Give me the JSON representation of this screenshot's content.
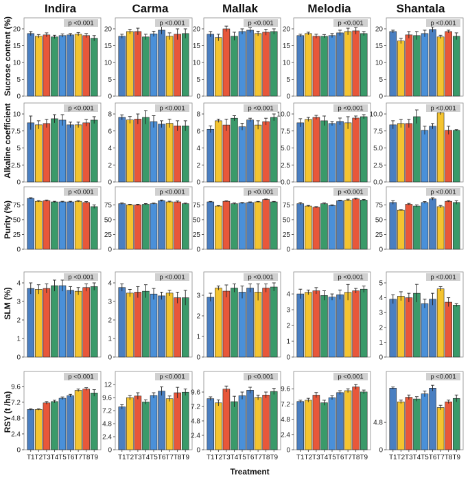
{
  "figure": {
    "cultivars": [
      "Indira",
      "Carma",
      "Mallak",
      "Melodia",
      "Shantala"
    ],
    "x_title": "Treatment",
    "treatments": [
      "T1",
      "T2",
      "T3",
      "T4",
      "T5",
      "T6",
      "T7",
      "T8",
      "T9"
    ],
    "p_label_prefix": "p",
    "p_label_suffix": "<0.001",
    "colors": [
      "#4a7fc1",
      "#f4c430",
      "#e8573a",
      "#3a9a6a",
      "#4a90d9",
      "#4a7fc1",
      "#f4c430",
      "#e8573a",
      "#3a9a6a"
    ]
  },
  "chart_data": [
    {
      "type": "bar",
      "row": 0,
      "col": 0,
      "cultivar": "Indira",
      "ylabel": "Sucrose content (%)",
      "ylim": [
        0,
        20
      ],
      "yticks": [
        "0",
        "5",
        "10",
        "15",
        "20"
      ],
      "p_label": "p <0.001",
      "values": [
        18.6,
        17.8,
        18.2,
        17.6,
        18.0,
        18.2,
        18.4,
        18.0,
        17.2
      ],
      "errors": [
        0.6,
        0.5,
        0.6,
        0.5,
        0.5,
        0.4,
        0.5,
        0.6,
        0.8
      ]
    },
    {
      "type": "bar",
      "row": 0,
      "col": 1,
      "cultivar": "Carma",
      "ylabel": "Sucrose content (%)",
      "ylim": [
        0,
        20
      ],
      "yticks": [
        "0",
        "5",
        "10",
        "15",
        "20"
      ],
      "p_label": "p <0.001",
      "values": [
        17.8,
        19.2,
        19.2,
        17.6,
        18.5,
        19.6,
        17.8,
        18.4,
        18.6
      ],
      "errors": [
        0.6,
        0.7,
        1.0,
        0.8,
        0.8,
        1.2,
        1.0,
        1.6,
        1.4
      ]
    },
    {
      "type": "bar",
      "row": 0,
      "col": 2,
      "cultivar": "Mallak",
      "ylabel": "Sucrose content (%)",
      "ylim": [
        0,
        20
      ],
      "yticks": [
        "0",
        "5",
        "10",
        "15",
        "20"
      ],
      "p_label": "p <0.001",
      "values": [
        18.4,
        17.4,
        20.0,
        17.8,
        19.2,
        19.6,
        18.6,
        19.0,
        19.2
      ],
      "errors": [
        0.8,
        1.0,
        0.8,
        1.2,
        0.8,
        0.7,
        0.7,
        0.9,
        0.8
      ]
    },
    {
      "type": "bar",
      "row": 0,
      "col": 3,
      "cultivar": "Melodia",
      "ylabel": "Sucrose content (%)",
      "ylim": [
        0,
        20
      ],
      "yticks": [
        "0",
        "5",
        "10",
        "15",
        "20"
      ],
      "p_label": "p <0.001",
      "values": [
        18.0,
        18.6,
        17.8,
        17.8,
        18.0,
        18.8,
        19.2,
        19.4,
        18.6
      ],
      "errors": [
        0.4,
        0.4,
        0.6,
        0.5,
        0.6,
        0.8,
        1.0,
        1.0,
        0.6
      ]
    },
    {
      "type": "bar",
      "row": 0,
      "col": 4,
      "cultivar": "Shantala",
      "ylabel": "Sucrose content (%)",
      "ylim": [
        0,
        20
      ],
      "yticks": [
        "0",
        "5",
        "10",
        "15",
        "20"
      ],
      "p_label": "p <0.001",
      "values": [
        19.2,
        16.4,
        18.2,
        18.0,
        18.6,
        19.8,
        17.6,
        19.2,
        17.8
      ],
      "errors": [
        0.4,
        0.8,
        1.0,
        1.2,
        1.0,
        0.8,
        0.5,
        0.4,
        1.0
      ]
    },
    {
      "type": "bar",
      "row": 1,
      "col": 0,
      "cultivar": "Indira",
      "ylabel": "Alkaline coefficient",
      "ylim": [
        0,
        10
      ],
      "yticks": [
        "0",
        "2.5",
        "5",
        "7.5",
        "10"
      ],
      "p_label": "p <0.001",
      "values": [
        8.7,
        8.4,
        8.6,
        9.3,
        9.1,
        8.4,
        8.4,
        8.7,
        9.1
      ],
      "errors": [
        1.0,
        0.6,
        0.6,
        0.6,
        0.8,
        0.4,
        0.4,
        0.5,
        0.5
      ]
    },
    {
      "type": "bar",
      "row": 1,
      "col": 1,
      "cultivar": "Carma",
      "ylabel": "Alkaline coefficient",
      "ylim": [
        0,
        8
      ],
      "yticks": [
        "0",
        "2",
        "4",
        "6",
        "8"
      ],
      "p_label": "p <0.001",
      "values": [
        7.6,
        7.3,
        7.4,
        7.6,
        7.1,
        6.8,
        6.9,
        6.6,
        6.6
      ],
      "errors": [
        0.3,
        0.4,
        0.6,
        0.8,
        0.7,
        0.4,
        0.5,
        0.6,
        0.6
      ]
    },
    {
      "type": "bar",
      "row": 1,
      "col": 2,
      "cultivar": "Mallak",
      "ylabel": "Alkaline coefficient",
      "ylim": [
        0,
        8
      ],
      "yticks": [
        "0",
        "2",
        "4",
        "6",
        "8"
      ],
      "p_label": "p <0.001",
      "values": [
        6.2,
        7.2,
        6.7,
        7.5,
        6.5,
        7.3,
        6.7,
        7.1,
        7.6
      ],
      "errors": [
        0.4,
        0.2,
        0.7,
        0.3,
        0.4,
        0.2,
        0.5,
        0.4,
        0.4
      ]
    },
    {
      "type": "bar",
      "row": 1,
      "col": 3,
      "cultivar": "Melodia",
      "ylabel": "Alkaline coefficient",
      "ylim": [
        0,
        10
      ],
      "yticks": [
        "0.0",
        "2.5",
        "5.0",
        "7.5",
        "10.0"
      ],
      "p_label": "p <0.001",
      "values": [
        8.7,
        9.2,
        9.5,
        9.0,
        8.6,
        8.9,
        8.7,
        9.4,
        9.6
      ],
      "errors": [
        0.6,
        0.3,
        0.3,
        0.7,
        0.3,
        0.5,
        0.9,
        0.3,
        0.3
      ]
    },
    {
      "type": "bar",
      "row": 1,
      "col": 4,
      "cultivar": "Shantala",
      "ylabel": "Alkaline coefficient",
      "ylim": [
        0,
        10
      ],
      "yticks": [
        "0.0",
        "2.5",
        "5.0",
        "7.5",
        "10.0"
      ],
      "p_label": "p <0.001",
      "values": [
        8.4,
        8.6,
        8.6,
        9.6,
        7.6,
        8.2,
        10.2,
        7.6,
        7.6
      ],
      "errors": [
        0.6,
        0.6,
        0.6,
        1.0,
        0.6,
        0.4,
        0.3,
        0.6,
        0.1
      ]
    },
    {
      "type": "bar",
      "row": 2,
      "col": 0,
      "cultivar": "Indira",
      "ylabel": "Purity (%)",
      "ylim": [
        0,
        87
      ],
      "yticks": [
        "0",
        "25",
        "50",
        "75"
      ],
      "p_label": "p <0.001",
      "values": [
        86,
        81,
        82,
        80,
        80,
        80,
        81,
        79,
        72
      ],
      "errors": [
        1.0,
        1.2,
        1.2,
        1.0,
        1.0,
        1.0,
        1.2,
        1.5,
        3.0
      ]
    },
    {
      "type": "bar",
      "row": 2,
      "col": 1,
      "cultivar": "Carma",
      "ylabel": "Purity (%)",
      "ylim": [
        0,
        87
      ],
      "yticks": [
        "0",
        "25",
        "50",
        "75"
      ],
      "p_label": "p <0.001",
      "values": [
        77,
        75,
        75,
        76,
        77,
        82,
        80,
        80,
        77
      ],
      "errors": [
        1.2,
        1.0,
        1.0,
        1.2,
        1.0,
        1.2,
        1.2,
        1.5,
        1.0
      ]
    },
    {
      "type": "bar",
      "row": 2,
      "col": 2,
      "cultivar": "Mallak",
      "ylabel": "Purity (%)",
      "ylim": [
        0,
        87
      ],
      "yticks": [
        "0",
        "25",
        "50",
        "75"
      ],
      "p_label": "p <0.001",
      "values": [
        80,
        73,
        81,
        77,
        78,
        79,
        80,
        84,
        80
      ],
      "errors": [
        0.8,
        0.8,
        0.8,
        1.2,
        1.0,
        1.0,
        0.8,
        0.8,
        0.8
      ]
    },
    {
      "type": "bar",
      "row": 2,
      "col": 3,
      "cultivar": "Melodia",
      "ylabel": "Purity (%)",
      "ylim": [
        0,
        87
      ],
      "yticks": [
        "0",
        "25",
        "50",
        "75"
      ],
      "p_label": "p <0.001",
      "values": [
        77,
        73,
        71,
        77,
        74,
        82,
        83,
        85,
        83
      ],
      "errors": [
        2.0,
        1.0,
        1.0,
        1.2,
        1.0,
        1.0,
        1.5,
        1.5,
        1.2
      ]
    },
    {
      "type": "bar",
      "row": 2,
      "col": 4,
      "cultivar": "Shantala",
      "ylabel": "Purity (%)",
      "ylim": [
        0,
        87
      ],
      "yticks": [
        "0",
        "25",
        "50",
        "75"
      ],
      "p_label": "p <0.001",
      "values": [
        79,
        66,
        76,
        73,
        79,
        85,
        72,
        81,
        79
      ],
      "errors": [
        3.0,
        0.8,
        1.5,
        2.0,
        1.5,
        2.0,
        2.0,
        1.2,
        3.0
      ]
    },
    {
      "type": "bar",
      "row": 3,
      "col": 0,
      "cultivar": "Indira",
      "ylabel": "SLM (%)",
      "ylim": [
        0,
        4
      ],
      "yticks": [
        "0",
        "1",
        "2",
        "3",
        "4"
      ],
      "p_label": "p <0.001",
      "values": [
        3.7,
        3.65,
        3.7,
        3.85,
        3.85,
        3.6,
        3.55,
        3.75,
        3.8
      ],
      "errors": [
        0.3,
        0.25,
        0.25,
        0.3,
        0.3,
        0.2,
        0.2,
        0.2,
        0.2
      ]
    },
    {
      "type": "bar",
      "row": 3,
      "col": 1,
      "cultivar": "Carma",
      "ylabel": "SLM (%)",
      "ylim": [
        0,
        4
      ],
      "yticks": [
        "0",
        "1",
        "2",
        "3",
        "4"
      ],
      "p_label": "p <0.001",
      "values": [
        3.75,
        3.45,
        3.5,
        3.55,
        3.4,
        3.3,
        3.45,
        3.2,
        3.2
      ],
      "errors": [
        0.2,
        0.2,
        0.3,
        0.35,
        0.3,
        0.2,
        0.15,
        0.3,
        0.4
      ]
    },
    {
      "type": "bar",
      "row": 3,
      "col": 2,
      "cultivar": "Mallak",
      "ylabel": "SLM (%)",
      "ylim": [
        0,
        3.6
      ],
      "yticks": [
        "0",
        "1",
        "2",
        "3"
      ],
      "p_label": "p <0.001",
      "values": [
        2.9,
        3.35,
        3.2,
        3.35,
        3.15,
        3.35,
        3.15,
        3.35,
        3.4
      ],
      "errors": [
        0.2,
        0.1,
        0.3,
        0.2,
        0.3,
        0.2,
        0.4,
        0.2,
        0.2
      ]
    },
    {
      "type": "bar",
      "row": 3,
      "col": 3,
      "cultivar": "Melodia",
      "ylabel": "SLM (%)",
      "ylim": [
        0,
        4.7
      ],
      "yticks": [
        "0",
        "1",
        "2",
        "3",
        "4"
      ],
      "p_label": "p <0.001",
      "values": [
        4.0,
        4.1,
        4.2,
        3.9,
        3.8,
        3.95,
        4.1,
        4.2,
        4.3
      ],
      "errors": [
        0.3,
        0.15,
        0.2,
        0.3,
        0.2,
        0.3,
        0.5,
        0.15,
        0.2
      ]
    },
    {
      "type": "bar",
      "row": 3,
      "col": 4,
      "cultivar": "Shantala",
      "ylabel": "SLM (%)",
      "ylim": [
        0,
        5
      ],
      "yticks": [
        "0",
        "1",
        "2",
        "3",
        "4",
        "5"
      ],
      "p_label": "p <0.001",
      "values": [
        3.9,
        4.1,
        4.0,
        4.3,
        3.6,
        3.9,
        4.6,
        3.7,
        3.5
      ],
      "errors": [
        0.3,
        0.3,
        0.3,
        0.6,
        0.3,
        0.4,
        0.15,
        0.3,
        0.1
      ]
    },
    {
      "type": "bar",
      "row": 4,
      "col": 0,
      "cultivar": "Indira",
      "ylabel": "RSY (t /ha)",
      "ylim": [
        0,
        10.2
      ],
      "yticks": [
        "0",
        "2.4",
        "4.8",
        "7.2",
        "9.6"
      ],
      "p_label": "p <0.001",
      "values": [
        6.1,
        6.1,
        7.1,
        7.3,
        7.8,
        8.2,
        9.0,
        9.2,
        8.6
      ],
      "errors": [
        0.1,
        0.1,
        0.2,
        0.2,
        0.2,
        0.2,
        0.2,
        0.2,
        0.5
      ]
    },
    {
      "type": "bar",
      "row": 4,
      "col": 1,
      "cultivar": "Carma",
      "ylabel": "RSY (t /ha)",
      "ylim": [
        0,
        12.4
      ],
      "yticks": [
        "0",
        "2.4",
        "4.8",
        "7.2",
        "9.6",
        "12"
      ],
      "p_label": "p <0.001",
      "values": [
        7.9,
        9.6,
        9.9,
        8.8,
        10.0,
        10.8,
        9.4,
        10.5,
        10.6
      ],
      "errors": [
        0.4,
        0.4,
        0.6,
        0.4,
        0.5,
        0.8,
        0.5,
        1.0,
        0.6
      ]
    },
    {
      "type": "bar",
      "row": 4,
      "col": 2,
      "cultivar": "Mallak",
      "ylabel": "RSY (t /ha)",
      "ylim": [
        0,
        11.2
      ],
      "yticks": [
        "0",
        "2.4",
        "4.8",
        "7.2",
        "9.6"
      ],
      "p_label": "p <0.001",
      "values": [
        8.5,
        7.8,
        10.1,
        8.0,
        9.0,
        9.9,
        8.7,
        9.1,
        9.7
      ],
      "errors": [
        0.3,
        0.5,
        0.5,
        0.9,
        0.6,
        0.5,
        0.4,
        0.5,
        0.5
      ]
    },
    {
      "type": "bar",
      "row": 4,
      "col": 3,
      "cultivar": "Melodia",
      "ylabel": "RSY (t /ha)",
      "ylim": [
        0,
        10.6
      ],
      "yticks": [
        "0",
        "2.4",
        "4.8",
        "7.2",
        "9.6"
      ],
      "p_label": "p <0.001",
      "values": [
        7.6,
        7.8,
        8.6,
        7.4,
        8.2,
        9.0,
        9.3,
        9.9,
        9.1
      ],
      "errors": [
        0.2,
        0.3,
        0.4,
        0.4,
        0.3,
        0.3,
        0.3,
        0.4,
        0.3
      ]
    },
    {
      "type": "bar",
      "row": 4,
      "col": 4,
      "cultivar": "Shantala",
      "ylabel": "RSY (t /ha)",
      "ylim": [
        0,
        11.8
      ],
      "yticks": [
        "0",
        "4.8"
      ],
      "p_label": "p <0.001",
      "values": [
        10.8,
        8.4,
        9.2,
        8.9,
        9.8,
        10.8,
        7.4,
        8.4,
        9.0
      ],
      "errors": [
        0.2,
        0.3,
        0.4,
        0.4,
        0.5,
        0.5,
        0.4,
        0.3,
        0.6
      ]
    }
  ]
}
